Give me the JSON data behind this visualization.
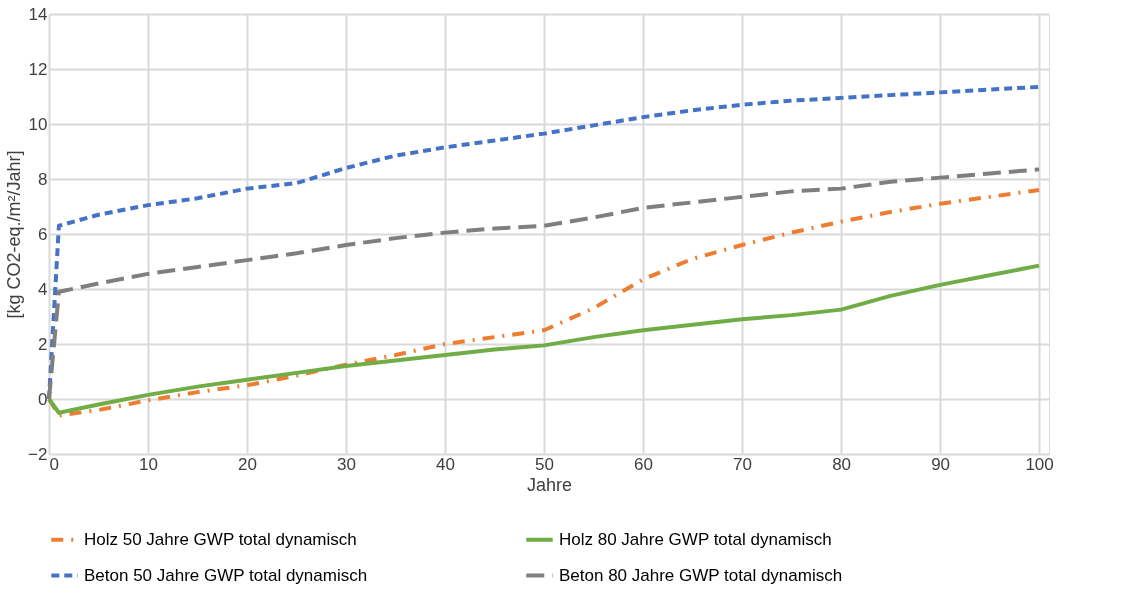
{
  "chart_data": {
    "type": "line",
    "xlabel": "Jahre",
    "ylabel": "[kg CO2-eq./m²/Jahr]",
    "x": [
      0,
      1,
      5,
      10,
      15,
      20,
      25,
      30,
      35,
      40,
      45,
      50,
      55,
      60,
      65,
      70,
      75,
      80,
      85,
      90,
      95,
      100
    ],
    "xlim": [
      0,
      101
    ],
    "xticks": [
      0,
      10,
      20,
      30,
      40,
      50,
      60,
      70,
      80,
      90,
      100
    ],
    "ylim": [
      -2,
      14
    ],
    "yticks": [
      -2,
      0,
      2,
      4,
      6,
      8,
      10,
      12,
      14
    ],
    "grid": true,
    "legend": "bottom",
    "marker": "none",
    "series": [
      {
        "name": "Holz 50 Jahre GWP total dynamisch",
        "color": "#ed7d31",
        "line_style": "dashdot",
        "values": [
          0,
          -0.6,
          -0.4,
          -0.05,
          0.25,
          0.5,
          0.85,
          1.25,
          1.6,
          2.0,
          2.25,
          2.5,
          3.3,
          4.35,
          5.1,
          5.6,
          6.05,
          6.45,
          6.8,
          7.1,
          7.35,
          7.6
        ]
      },
      {
        "name": "Holz 80 Jahre GWP total dynamisch",
        "color": "#70ad47",
        "line_style": "solid",
        "values": [
          0,
          -0.5,
          -0.2,
          0.15,
          0.45,
          0.7,
          0.95,
          1.2,
          1.4,
          1.6,
          1.8,
          1.95,
          2.25,
          2.5,
          2.7,
          2.9,
          3.05,
          3.25,
          3.75,
          4.15,
          4.5,
          4.85
        ]
      },
      {
        "name": "Beton 50 Jahre GWP total dynamisch",
        "color": "#4472c4",
        "line_style": "dashed",
        "values": [
          0,
          6.3,
          6.7,
          7.05,
          7.3,
          7.65,
          7.85,
          8.4,
          8.85,
          9.15,
          9.4,
          9.65,
          9.95,
          10.25,
          10.5,
          10.7,
          10.85,
          10.95,
          11.05,
          11.15,
          11.25,
          11.35
        ]
      },
      {
        "name": "Beton 80 Jahre GWP total dynamisch",
        "color": "#7f7f7f",
        "line_style": "longdash",
        "values": [
          0,
          3.9,
          4.2,
          4.55,
          4.8,
          5.05,
          5.3,
          5.6,
          5.85,
          6.05,
          6.2,
          6.3,
          6.6,
          6.95,
          7.15,
          7.35,
          7.55,
          7.65,
          7.9,
          8.05,
          8.2,
          8.35
        ]
      }
    ]
  }
}
